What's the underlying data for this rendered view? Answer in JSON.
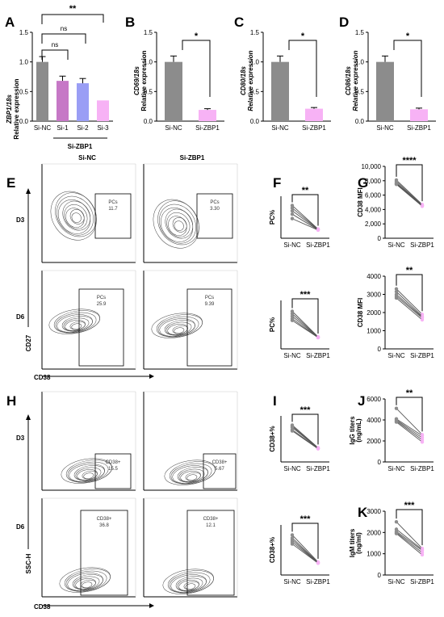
{
  "colors": {
    "nc": "#8c8c8c",
    "si1": "#c678c6",
    "si2": "#9a9ef5",
    "si3": "#f7b2f5",
    "zbp1": "#f7b2f5"
  },
  "panelA": {
    "letter": "A",
    "ylabel_gene": "ZBP1/18s",
    "ylabel": "Relative expression",
    "group_label": "Si-ZBP1",
    "sig": [
      "ns",
      "ns",
      "**"
    ]
  },
  "panelB": {
    "letter": "B",
    "ylabel_gene": "CD69/18s",
    "ylabel": "Relative expression",
    "sig": "*"
  },
  "panelC": {
    "letter": "C",
    "ylabel_gene": "CD80/18s",
    "ylabel": "Relative expression",
    "sig": "*"
  },
  "panelD": {
    "letter": "D",
    "ylabel_gene": "CD86/18s",
    "ylabel": "Relative expression",
    "sig": "*"
  },
  "panelE": {
    "letter": "E",
    "col1": "Si-NC",
    "col2": "Si-ZBP1",
    "row1": "D3",
    "row2": "D6",
    "xlab": "CD38",
    "ylab": "CD27",
    "gates": [
      {
        "name": "PCs",
        "val": "11.7"
      },
      {
        "name": "PCs",
        "val": "3.30"
      },
      {
        "name": "PCs",
        "val": "25.9"
      },
      {
        "name": "PCs",
        "val": "9.39"
      }
    ]
  },
  "panelH": {
    "letter": "H",
    "row1": "D3",
    "row2": "D6",
    "xlab": "CD38",
    "ylab": "SSC-H",
    "gates": [
      {
        "name": "CD38+",
        "val": "15.5"
      },
      {
        "name": "CD38+",
        "val": "5.67"
      },
      {
        "name": "CD38+",
        "val": "36.8"
      },
      {
        "name": "CD38+",
        "val": "12.1"
      }
    ]
  },
  "pairedLetters": {
    "F": "F",
    "G": "G",
    "I": "I",
    "J": "J",
    "K": "K"
  },
  "chart_data": [
    {
      "type": "bar",
      "panel": "A",
      "categories": [
        "Si-NC",
        "Si-1",
        "Si-2",
        "Si-3"
      ],
      "values": [
        1.0,
        0.68,
        0.64,
        0.35
      ],
      "errors": [
        0.09,
        0.08,
        0.08,
        0.0
      ],
      "ylim": [
        0,
        1.5
      ],
      "yticks": [
        "0.0",
        "0.5",
        "1.0",
        "1.5"
      ],
      "ylabel": "ZBP1/18s Relative expression"
    },
    {
      "type": "bar",
      "panel": "B",
      "categories": [
        "Si-NC",
        "Si-ZBP1"
      ],
      "values": [
        1.0,
        0.19
      ],
      "errors": [
        0.1,
        0.02
      ],
      "ylim": [
        0,
        1.5
      ],
      "yticks": [
        "0.0",
        "0.5",
        "1.0",
        "1.5"
      ],
      "ylabel": "CD69/18s Relative expression"
    },
    {
      "type": "bar",
      "panel": "C",
      "categories": [
        "Si-NC",
        "Si-ZBP1"
      ],
      "values": [
        1.0,
        0.21
      ],
      "errors": [
        0.1,
        0.02
      ],
      "ylim": [
        0,
        1.5
      ],
      "yticks": [
        "0.0",
        "0.5",
        "1.0",
        "1.5"
      ],
      "ylabel": "CD80/18s Relative expression"
    },
    {
      "type": "bar",
      "panel": "D",
      "categories": [
        "Si-NC",
        "Si-ZBP1"
      ],
      "values": [
        1.0,
        0.2
      ],
      "errors": [
        0.1,
        0.02
      ],
      "ylim": [
        0,
        1.5
      ],
      "yticks": [
        "0.0",
        "0.5",
        "1.0",
        "1.5"
      ],
      "ylabel": "CD86/18s Relative expression"
    },
    {
      "type": "scatter",
      "panel": "F-top",
      "categories": [
        "Si-NC",
        "Si-ZBP1"
      ],
      "ylabel": "PC%",
      "ylim": [
        0,
        15
      ],
      "yticks": [],
      "sig": "**",
      "pairs": [
        [
          11.7,
          3.3
        ],
        [
          10.8,
          3.2
        ],
        [
          9.8,
          3.1
        ],
        [
          8.6,
          3.0
        ],
        [
          7.0,
          2.9
        ]
      ]
    },
    {
      "type": "scatter",
      "panel": "F-bottom",
      "categories": [
        "Si-NC",
        "Si-ZBP1"
      ],
      "ylabel": "PC%",
      "ylim": [
        0,
        40
      ],
      "yticks": [],
      "sig": "***",
      "pairs": [
        [
          31,
          10
        ],
        [
          29,
          9.8
        ],
        [
          27,
          9.6
        ],
        [
          25,
          9.4
        ],
        [
          23.5,
          9.3
        ]
      ]
    },
    {
      "type": "scatter",
      "panel": "G-top",
      "categories": [
        "Si-NC",
        "Si-ZBP1"
      ],
      "ylabel": "CD38 MFI",
      "ylim": [
        0,
        10000
      ],
      "yticks": [
        "0",
        "2,000",
        "4,000",
        "6,000",
        "8,000",
        "10,000"
      ],
      "sig": "****",
      "pairs": [
        [
          8100,
          4700
        ],
        [
          7900,
          4600
        ],
        [
          7700,
          4550
        ],
        [
          7600,
          4500
        ],
        [
          7500,
          4450
        ]
      ]
    },
    {
      "type": "scatter",
      "panel": "G-bottom",
      "categories": [
        "Si-NC",
        "Si-ZBP1"
      ],
      "ylabel": "CD38 MFI",
      "ylim": [
        0,
        4000
      ],
      "yticks": [
        "0",
        "1000",
        "2000",
        "3000",
        "4000"
      ],
      "sig": "**",
      "pairs": [
        [
          3300,
          1900
        ],
        [
          3150,
          1800
        ],
        [
          3000,
          1750
        ],
        [
          2900,
          1700
        ],
        [
          2800,
          1600
        ]
      ]
    },
    {
      "type": "scatter",
      "panel": "I-top",
      "categories": [
        "Si-NC",
        "Si-ZBP1"
      ],
      "ylabel": "CD38+%",
      "ylim": [
        0,
        20
      ],
      "yticks": [],
      "sig": "***",
      "pairs": [
        [
          16,
          6.2
        ],
        [
          15.5,
          6.0
        ],
        [
          15,
          5.9
        ],
        [
          14,
          5.8
        ],
        [
          13.5,
          5.7
        ]
      ]
    },
    {
      "type": "scatter",
      "panel": "I-bottom",
      "categories": [
        "Si-NC",
        "Si-ZBP1"
      ],
      "ylabel": "CD38+%",
      "ylim": [
        0,
        50
      ],
      "yticks": [],
      "sig": "***",
      "pairs": [
        [
          40,
          13
        ],
        [
          37,
          12.5
        ],
        [
          35,
          12.2
        ],
        [
          33,
          12
        ],
        [
          31,
          11.8
        ]
      ]
    },
    {
      "type": "scatter",
      "panel": "J",
      "categories": [
        "Si-NC",
        "Si-ZBP1"
      ],
      "ylabel": "IgG titers (ng/mL)",
      "ylim": [
        0,
        6000
      ],
      "yticks": [
        "0",
        "2000",
        "4000",
        "6000"
      ],
      "sig": "**",
      "pairs": [
        [
          5100,
          2600
        ],
        [
          4100,
          2500
        ],
        [
          4000,
          2300
        ],
        [
          3900,
          2100
        ],
        [
          3800,
          1900
        ]
      ]
    },
    {
      "type": "scatter",
      "panel": "K",
      "categories": [
        "Si-NC",
        "Si-ZBP1"
      ],
      "ylabel": "IgM titers (ng/ml)",
      "ylim": [
        0,
        3000
      ],
      "yticks": [
        "0",
        "1000",
        "2000",
        "3000"
      ],
      "sig": "***",
      "pairs": [
        [
          2500,
          1250
        ],
        [
          2150,
          1200
        ],
        [
          2050,
          1150
        ],
        [
          2000,
          1050
        ],
        [
          1950,
          950
        ]
      ]
    }
  ]
}
